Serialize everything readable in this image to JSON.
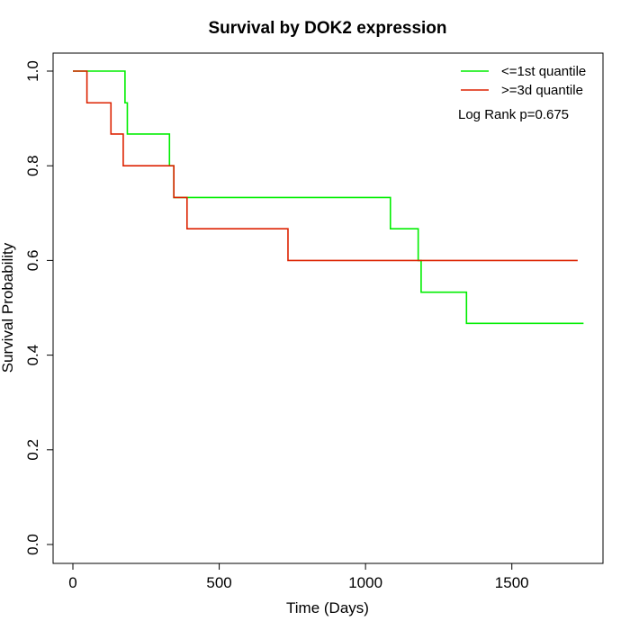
{
  "chart_data": {
    "type": "line",
    "title": "Survival by DOK2 expression",
    "xlabel": "Time (Days)",
    "ylabel": "Survival Probability",
    "xlim": [
      0,
      1750
    ],
    "ylim": [
      0,
      1
    ],
    "xticks": [
      0,
      500,
      1000,
      1500
    ],
    "yticks": [
      0.0,
      0.2,
      0.4,
      0.6,
      0.8,
      1.0
    ],
    "xtick_labels": [
      "0",
      "500",
      "1000",
      "1500"
    ],
    "ytick_labels": [
      "0.0",
      "0.2",
      "0.4",
      "0.6",
      "0.8",
      "1.0"
    ],
    "grid": false,
    "legend_position": "top-right",
    "annotation": "Log Rank p=0.675",
    "series": [
      {
        "name": "<=1st quantile",
        "color": "#00ee00",
        "step": true,
        "points": [
          [
            0,
            1.0
          ],
          [
            178,
            1.0
          ],
          [
            178,
            0.933
          ],
          [
            186,
            0.933
          ],
          [
            186,
            0.867
          ],
          [
            330,
            0.867
          ],
          [
            330,
            0.8
          ],
          [
            345,
            0.8
          ],
          [
            345,
            0.733
          ],
          [
            1085,
            0.733
          ],
          [
            1085,
            0.667
          ],
          [
            1180,
            0.667
          ],
          [
            1180,
            0.6
          ],
          [
            1190,
            0.6
          ],
          [
            1190,
            0.533
          ],
          [
            1345,
            0.533
          ],
          [
            1345,
            0.467
          ],
          [
            1745,
            0.467
          ]
        ]
      },
      {
        "name": ">=3d quantile",
        "color": "#dd2200",
        "step": true,
        "points": [
          [
            0,
            1.0
          ],
          [
            48,
            1.0
          ],
          [
            48,
            0.933
          ],
          [
            130,
            0.933
          ],
          [
            130,
            0.867
          ],
          [
            172,
            0.867
          ],
          [
            172,
            0.8
          ],
          [
            345,
            0.8
          ],
          [
            345,
            0.733
          ],
          [
            390,
            0.733
          ],
          [
            390,
            0.667
          ],
          [
            735,
            0.667
          ],
          [
            735,
            0.6
          ],
          [
            1725,
            0.6
          ]
        ]
      }
    ]
  }
}
